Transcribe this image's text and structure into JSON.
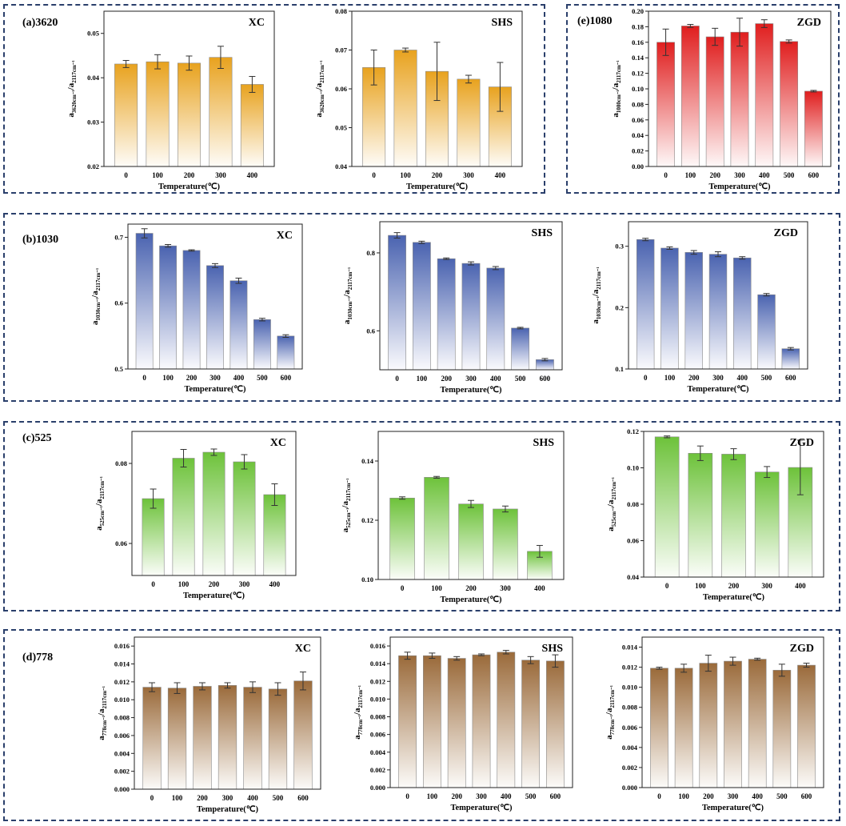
{
  "panels": [
    {
      "label": "(a)3620"
    },
    {
      "label": "(e)1080"
    },
    {
      "label": "(b)1030"
    },
    {
      "label": "(c)525"
    },
    {
      "label": "(d)778"
    }
  ],
  "xlabel": "Temperature(℃)",
  "chart_data": [
    {
      "id": "a-xc",
      "panel": "(a)3620",
      "type": "bar",
      "title": "XC",
      "ylabel_main": "a",
      "ylabel_sub1": "3620cm⁻¹",
      "ylabel_sub2": "2117cm⁻¹",
      "categories": [
        "0",
        "100",
        "200",
        "300",
        "400"
      ],
      "values": [
        0.0431,
        0.0436,
        0.0433,
        0.0446,
        0.0385
      ],
      "errors": [
        0.0008,
        0.0016,
        0.0016,
        0.0025,
        0.0018
      ],
      "ylim": [
        0.02,
        0.055
      ],
      "yticks": [
        0.02,
        0.03,
        0.04,
        0.05
      ],
      "yfmt": 2,
      "color": "#e8a21e"
    },
    {
      "id": "a-shs",
      "panel": "(a)3620",
      "type": "bar",
      "title": "SHS",
      "ylabel_main": "a",
      "ylabel_sub1": "3620cm⁻¹",
      "ylabel_sub2": "2117cm⁻¹",
      "categories": [
        "0",
        "100",
        "200",
        "300",
        "400"
      ],
      "values": [
        0.0655,
        0.07,
        0.0645,
        0.0625,
        0.0605
      ],
      "errors": [
        0.0045,
        0.0005,
        0.0075,
        0.001,
        0.0063
      ],
      "ylim": [
        0.04,
        0.08
      ],
      "yticks": [
        0.04,
        0.05,
        0.06,
        0.07,
        0.08
      ],
      "yfmt": 2,
      "color": "#e8a21e"
    },
    {
      "id": "e-zgd",
      "panel": "(e)1080",
      "type": "bar",
      "title": "ZGD",
      "ylabel_main": "a",
      "ylabel_sub1": "1080cm⁻¹",
      "ylabel_sub2": "2117cm⁻¹",
      "categories": [
        "0",
        "100",
        "200",
        "300",
        "400",
        "500",
        "600"
      ],
      "values": [
        0.16,
        0.181,
        0.167,
        0.173,
        0.184,
        0.161,
        0.097
      ],
      "errors": [
        0.017,
        0.002,
        0.011,
        0.018,
        0.005,
        0.002,
        0.001
      ],
      "ylim": [
        0,
        0.2
      ],
      "yticks": [
        0,
        0.02,
        0.04,
        0.06,
        0.08,
        0.1,
        0.12,
        0.14,
        0.16,
        0.18,
        0.2
      ],
      "yfmt": 2,
      "color": "#e01e1e"
    },
    {
      "id": "b-xc",
      "panel": "(b)1030",
      "type": "bar",
      "title": "XC",
      "ylabel_main": "a",
      "ylabel_sub1": "1030cm⁻¹",
      "ylabel_sub2": "2117cm⁻¹",
      "categories": [
        "0",
        "100",
        "200",
        "300",
        "400",
        "500",
        "600"
      ],
      "values": [
        0.706,
        0.687,
        0.68,
        0.657,
        0.634,
        0.575,
        0.55
      ],
      "errors": [
        0.007,
        0.002,
        0.001,
        0.003,
        0.004,
        0.002,
        0.002
      ],
      "ylim": [
        0.5,
        0.72
      ],
      "yticks": [
        0.5,
        0.6,
        0.7
      ],
      "yfmt": 1,
      "color": "#4a63b0"
    },
    {
      "id": "b-shs",
      "panel": "(b)1030",
      "type": "bar",
      "title": "SHS",
      "ylabel_main": "a",
      "ylabel_sub1": "1030cm⁻¹",
      "ylabel_sub2": "2117cm⁻¹",
      "categories": [
        "0",
        "100",
        "200",
        "300",
        "400",
        "500",
        "600"
      ],
      "values": [
        0.845,
        0.827,
        0.785,
        0.773,
        0.761,
        0.607,
        0.526
      ],
      "errors": [
        0.007,
        0.003,
        0.002,
        0.004,
        0.004,
        0.002,
        0.003
      ],
      "ylim": [
        0.5,
        0.88
      ],
      "yticks": [
        0.6,
        0.8
      ],
      "yfmt": 1,
      "color": "#4a63b0"
    },
    {
      "id": "b-zgd",
      "panel": "(b)1030",
      "type": "bar",
      "title": "ZGD",
      "ylabel_main": "a",
      "ylabel_sub1": "1030cm⁻¹",
      "ylabel_sub2": "2117cm⁻¹",
      "categories": [
        "0",
        "100",
        "200",
        "300",
        "400",
        "500",
        "600"
      ],
      "values": [
        0.311,
        0.297,
        0.29,
        0.287,
        0.281,
        0.221,
        0.133
      ],
      "errors": [
        0.002,
        0.002,
        0.003,
        0.004,
        0.002,
        0.002,
        0.002
      ],
      "ylim": [
        0.1,
        0.34
      ],
      "yticks": [
        0.1,
        0.2,
        0.3
      ],
      "yfmt": 1,
      "color": "#4a63b0"
    },
    {
      "id": "c-xc",
      "panel": "(c)525",
      "type": "bar",
      "title": "XC",
      "ylabel_main": "a",
      "ylabel_sub1": "525cm⁻¹",
      "ylabel_sub2": "2117cm⁻¹",
      "categories": [
        "0",
        "100",
        "200",
        "300",
        "400"
      ],
      "values": [
        0.0712,
        0.0813,
        0.0828,
        0.0804,
        0.0722
      ],
      "errors": [
        0.0024,
        0.0022,
        0.0008,
        0.0018,
        0.0027
      ],
      "ylim": [
        0.052,
        0.088
      ],
      "yticks": [
        0.06,
        0.08
      ],
      "yfmt": 2,
      "color": "#6dc23a"
    },
    {
      "id": "c-shs",
      "panel": "(c)525",
      "type": "bar",
      "title": "SHS",
      "ylabel_main": "a",
      "ylabel_sub1": "525cm⁻¹",
      "ylabel_sub2": "2117cm⁻¹",
      "categories": [
        "0",
        "100",
        "200",
        "300",
        "400"
      ],
      "values": [
        0.1275,
        0.1345,
        0.1255,
        0.1238,
        0.1095
      ],
      "errors": [
        0.0004,
        0.0003,
        0.0012,
        0.001,
        0.002
      ],
      "ylim": [
        0.1,
        0.15
      ],
      "yticks": [
        0.1,
        0.12,
        0.14
      ],
      "yfmt": 2,
      "color": "#6dc23a"
    },
    {
      "id": "c-zgd",
      "panel": "(c)525",
      "type": "bar",
      "title": "ZGD",
      "ylabel_main": "a",
      "ylabel_sub1": "525cm⁻¹",
      "ylabel_sub2": "2117cm⁻¹",
      "categories": [
        "0",
        "100",
        "200",
        "300",
        "400"
      ],
      "values": [
        0.117,
        0.108,
        0.1075,
        0.0977,
        0.1002
      ],
      "errors": [
        0.0005,
        0.004,
        0.003,
        0.003,
        0.015
      ],
      "ylim": [
        0.04,
        0.12
      ],
      "yticks": [
        0.04,
        0.06,
        0.08,
        0.1,
        0.12
      ],
      "yfmt": 2,
      "color": "#6dc23a"
    },
    {
      "id": "d-xc",
      "panel": "(d)778",
      "type": "bar",
      "title": "XC",
      "ylabel_main": "a",
      "ylabel_sub1": "778cm⁻¹",
      "ylabel_sub2": "2117cm⁻¹",
      "categories": [
        "0",
        "100",
        "200",
        "300",
        "400",
        "500",
        "600"
      ],
      "values": [
        0.0114,
        0.0113,
        0.0115,
        0.0116,
        0.0114,
        0.0112,
        0.0121
      ],
      "errors": [
        0.0005,
        0.0006,
        0.0004,
        0.0003,
        0.0006,
        0.0007,
        0.001
      ],
      "ylim": [
        0,
        0.017
      ],
      "yticks": [
        0,
        0.002,
        0.004,
        0.006,
        0.008,
        0.01,
        0.012,
        0.014,
        0.016
      ],
      "yfmt": 3,
      "color": "#9a6a3a"
    },
    {
      "id": "d-shs",
      "panel": "(d)778",
      "type": "bar",
      "title": "SHS",
      "ylabel_main": "a",
      "ylabel_sub1": "778cm⁻¹",
      "ylabel_sub2": "2117cm⁻¹",
      "categories": [
        "0",
        "100",
        "200",
        "300",
        "400",
        "500",
        "600"
      ],
      "values": [
        0.0149,
        0.0149,
        0.0146,
        0.015,
        0.0153,
        0.0144,
        0.0143
      ],
      "errors": [
        0.0004,
        0.0003,
        0.0002,
        0.0001,
        0.0002,
        0.0004,
        0.0007
      ],
      "ylim": [
        0,
        0.017
      ],
      "yticks": [
        0,
        0.002,
        0.004,
        0.006,
        0.008,
        0.01,
        0.012,
        0.014,
        0.016
      ],
      "yfmt": 3,
      "color": "#9a6a3a"
    },
    {
      "id": "d-zgd",
      "panel": "(d)778",
      "type": "bar",
      "title": "ZGD",
      "ylabel_main": "a",
      "ylabel_sub1": "778cm⁻¹",
      "ylabel_sub2": "2117cm⁻¹",
      "categories": [
        "0",
        "100",
        "200",
        "300",
        "400",
        "500",
        "600"
      ],
      "values": [
        0.0119,
        0.0119,
        0.0124,
        0.0126,
        0.0128,
        0.0117,
        0.0122
      ],
      "errors": [
        0.0001,
        0.0004,
        0.0008,
        0.0004,
        0.0001,
        0.0006,
        0.0002
      ],
      "ylim": [
        0,
        0.015
      ],
      "yticks": [
        0,
        0.002,
        0.004,
        0.006,
        0.008,
        0.01,
        0.012,
        0.014
      ],
      "yfmt": 3,
      "color": "#9a6a3a"
    }
  ]
}
